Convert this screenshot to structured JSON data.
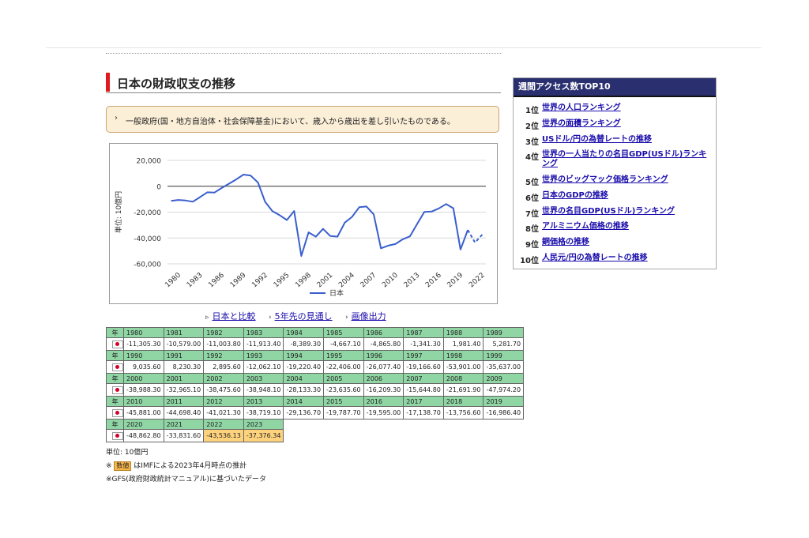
{
  "page": {
    "title": "日本の財政収支の推移",
    "notice": "一般政府(国・地方自治体・社会保障基金)において、歳入から歳出を差し引いたものである。"
  },
  "chart_data": {
    "type": "line",
    "title": "",
    "xlabel": "",
    "ylabel": "単位: 10億円",
    "ylim": [
      -60000,
      20000
    ],
    "yticks": [
      "20,000",
      "0",
      "-20,000",
      "-40,000",
      "-60,000"
    ],
    "xticks": [
      "1980",
      "1983",
      "1986",
      "1989",
      "1992",
      "1995",
      "1998",
      "2001",
      "2004",
      "2007",
      "2010",
      "2013",
      "2016",
      "2019",
      "2022"
    ],
    "grid": true,
    "legend": "bottom",
    "series": [
      {
        "name": "日本",
        "color": "#3a5fcd",
        "x": [
          1980,
          1981,
          1982,
          1983,
          1984,
          1985,
          1986,
          1987,
          1988,
          1989,
          1990,
          1991,
          1992,
          1993,
          1994,
          1995,
          1996,
          1997,
          1998,
          1999,
          2000,
          2001,
          2002,
          2003,
          2004,
          2005,
          2006,
          2007,
          2008,
          2009,
          2010,
          2011,
          2012,
          2013,
          2014,
          2015,
          2016,
          2017,
          2018,
          2019,
          2020,
          2021,
          2022,
          2023
        ],
        "values": [
          -11305.3,
          -10579.0,
          -11003.8,
          -11913.4,
          -8389.3,
          -4667.1,
          -4865.8,
          -1341.3,
          1981.4,
          5281.7,
          9035.6,
          8230.3,
          2895.6,
          -12062.1,
          -19220.4,
          -22406.0,
          -26077.4,
          -19166.6,
          -53901.0,
          -35637.0,
          -38988.3,
          -32965.1,
          -38475.6,
          -38948.1,
          -28133.3,
          -23635.6,
          -16209.3,
          -15644.8,
          -21691.9,
          -47974.2,
          -45881.0,
          -44698.4,
          -41021.3,
          -38719.1,
          -29136.7,
          -19787.7,
          -19595.0,
          -17138.7,
          -13756.6,
          -16986.4,
          -48862.8,
          -33831.6,
          -43536.13,
          -37376.34
        ],
        "estimate_from": 2022
      }
    ]
  },
  "links": [
    {
      "label": "日本と比較",
      "marker": "▹"
    },
    {
      "label": "5年先の見通し",
      "marker": "›"
    },
    {
      "label": "画像出力",
      "marker": "›"
    }
  ],
  "table": {
    "year_label": "年",
    "rows": [
      {
        "years": [
          "1980",
          "1981",
          "1982",
          "1983",
          "1984",
          "1985",
          "1986",
          "1987",
          "1988",
          "1989"
        ],
        "values": [
          "-11,305.30",
          "-10,579.00",
          "-11,003.80",
          "-11,913.40",
          "-8,389.30",
          "-4,667.10",
          "-4,865.80",
          "-1,341.30",
          "1,981.40",
          "5,281.70"
        ]
      },
      {
        "years": [
          "1990",
          "1991",
          "1992",
          "1993",
          "1994",
          "1995",
          "1996",
          "1997",
          "1998",
          "1999"
        ],
        "values": [
          "9,035.60",
          "8,230.30",
          "2,895.60",
          "-12,062.10",
          "-19,220.40",
          "-22,406.00",
          "-26,077.40",
          "-19,166.60",
          "-53,901.00",
          "-35,637.00"
        ]
      },
      {
        "years": [
          "2000",
          "2001",
          "2002",
          "2003",
          "2004",
          "2005",
          "2006",
          "2007",
          "2008",
          "2009"
        ],
        "values": [
          "-38,988.30",
          "-32,965.10",
          "-38,475.60",
          "-38,948.10",
          "-28,133.30",
          "-23,635.60",
          "-16,209.30",
          "-15,644.80",
          "-21,691.90",
          "-47,974.20"
        ]
      },
      {
        "years": [
          "2010",
          "2011",
          "2012",
          "2013",
          "2014",
          "2015",
          "2016",
          "2017",
          "2018",
          "2019"
        ],
        "values": [
          "-45,881.00",
          "-44,698.40",
          "-41,021.30",
          "-38,719.10",
          "-29,136.70",
          "-19,787.70",
          "-19,595.00",
          "-17,138.70",
          "-13,756.60",
          "-16,986.40"
        ]
      },
      {
        "years": [
          "2020",
          "2021",
          "2022",
          "2023"
        ],
        "values": [
          "-48,862.80",
          "-33,831.60",
          "-43,536.13",
          "-37,376.34"
        ],
        "estimated": [
          false,
          false,
          true,
          true
        ]
      }
    ]
  },
  "notes": {
    "unit": "単位: 10億円",
    "estimate_prefix": "※",
    "estimate_badge": "数値",
    "estimate_text": "はIMFによる2023年4月時点の推計",
    "gfs": "※GFS(政府財政統計マニュアル)に基づいたデータ"
  },
  "sidebar": {
    "title": "週間アクセス数TOP10",
    "items": [
      {
        "rank": "1位",
        "label": "世界の人口ランキング"
      },
      {
        "rank": "2位",
        "label": "世界の面積ランキング"
      },
      {
        "rank": "3位",
        "label": "USドル/円の為替レートの推移"
      },
      {
        "rank": "4位",
        "label": "世界の一人当たりの名目GDP(USドル)ランキング"
      },
      {
        "rank": "5位",
        "label": "世界のビッグマック価格ランキング"
      },
      {
        "rank": "6位",
        "label": "日本のGDPの推移"
      },
      {
        "rank": "7位",
        "label": "世界の名目GDP(USドル)ランキング"
      },
      {
        "rank": "8位",
        "label": "アルミニウム価格の推移"
      },
      {
        "rank": "9位",
        "label": "銅価格の推移"
      },
      {
        "rank": "10位",
        "label": "人民元/円の為替レートの推移"
      }
    ]
  }
}
